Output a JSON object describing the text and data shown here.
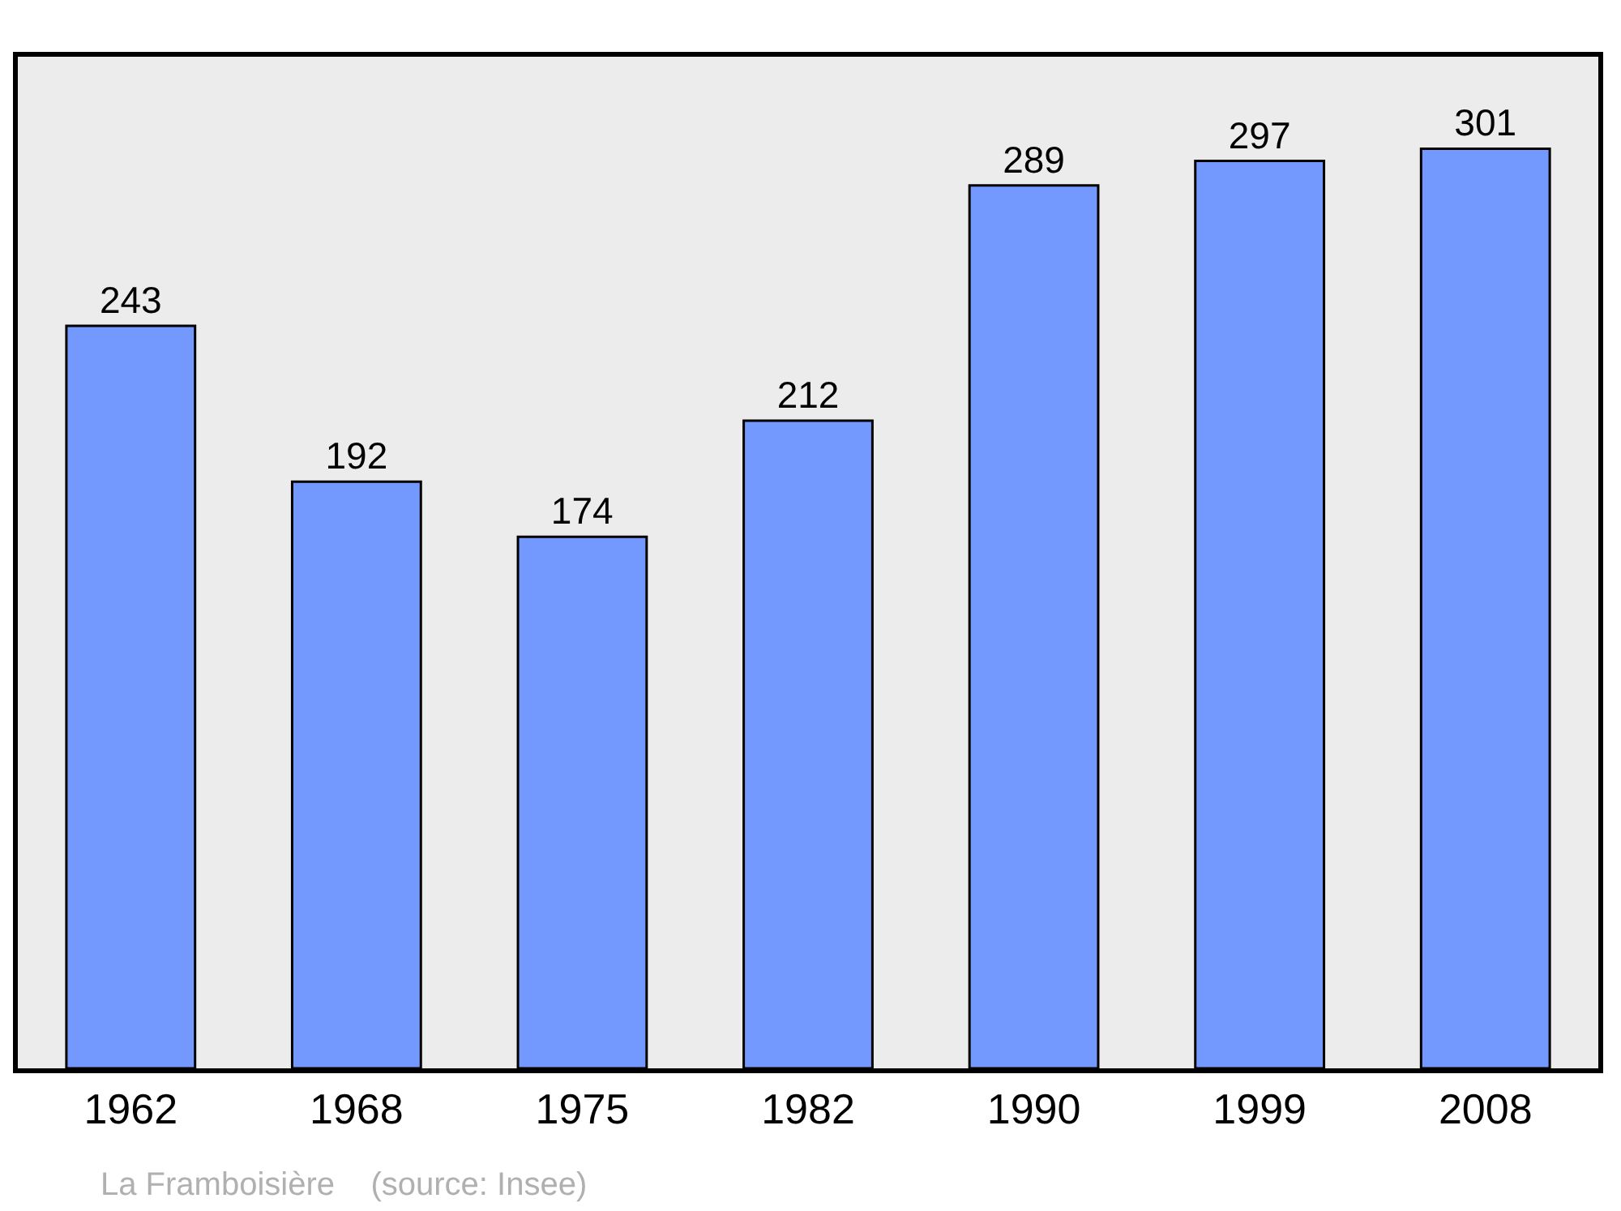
{
  "chart_data": {
    "type": "bar",
    "categories": [
      "1962",
      "1968",
      "1975",
      "1982",
      "1990",
      "1999",
      "2008"
    ],
    "values": [
      243,
      192,
      174,
      212,
      289,
      297,
      301
    ],
    "color": "#7399ff",
    "data_labels": true,
    "grid": false,
    "legend": false,
    "annotations": [
      "La Framboisière    (source: Insee)"
    ]
  }
}
